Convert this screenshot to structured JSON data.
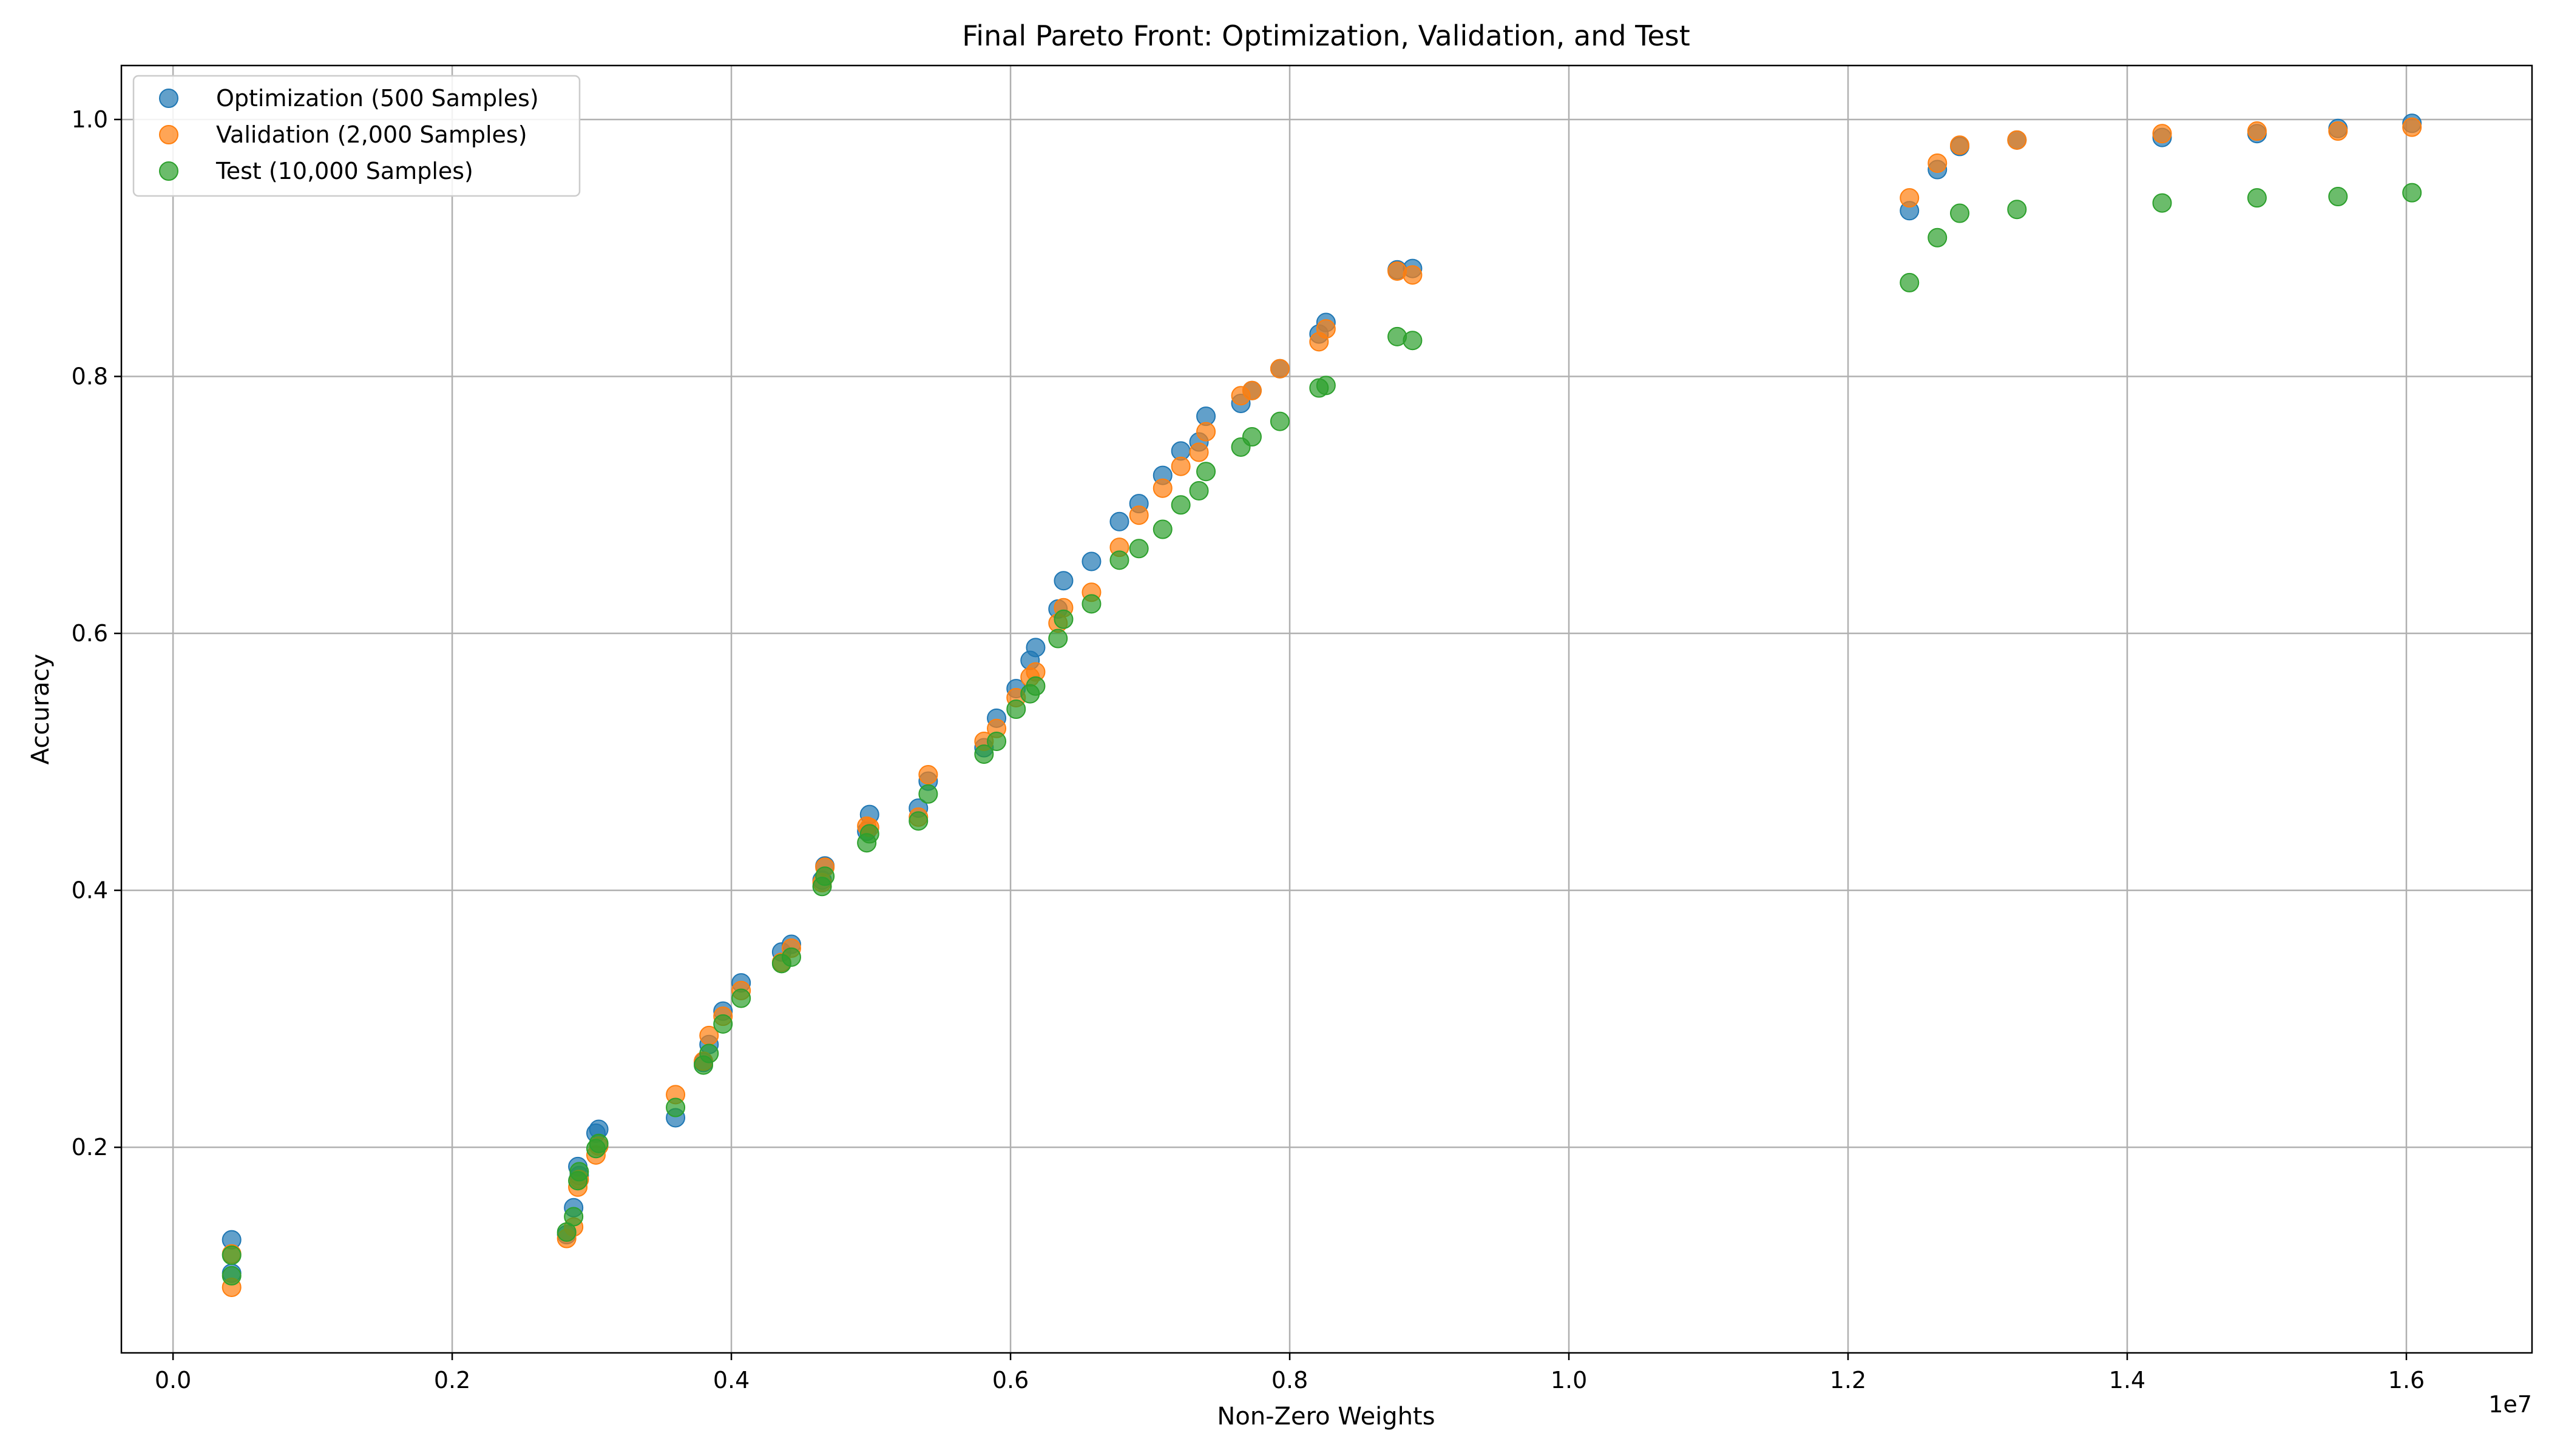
{
  "chart_data": {
    "type": "scatter",
    "title": "Final Pareto Front: Optimization, Validation, and Test",
    "xlabel": "Non-Zero Weights",
    "ylabel": "Accuracy",
    "x_offset_label": "1e7",
    "xlim": [
      -370000,
      16900000
    ],
    "ylim": [
      0.04,
      1.042
    ],
    "xticks": [
      0,
      2000000,
      4000000,
      6000000,
      8000000,
      10000000,
      12000000,
      14000000,
      16000000
    ],
    "xtick_labels": [
      "0.0",
      "0.2",
      "0.4",
      "0.6",
      "0.8",
      "1.0",
      "1.2",
      "1.4",
      "1.6"
    ],
    "yticks": [
      0.2,
      0.4,
      0.6,
      0.8,
      1.0
    ],
    "ytick_labels": [
      "0.2",
      "0.4",
      "0.6",
      "0.8",
      "1.0"
    ],
    "grid": true,
    "legend_position": "top-left",
    "x": [
      420000,
      420000,
      2820000,
      2870000,
      2900000,
      2910000,
      3030000,
      3050000,
      3600000,
      3800000,
      3840000,
      3940000,
      4070000,
      4360000,
      4430000,
      4650000,
      4670000,
      4970000,
      4990000,
      5340000,
      5410000,
      5810000,
      5900000,
      6040000,
      6140000,
      6180000,
      6340000,
      6380000,
      6580000,
      6780000,
      6920000,
      7090000,
      7220000,
      7350000,
      7400000,
      7650000,
      7730000,
      7930000,
      8210000,
      8260000,
      8770000,
      8880000,
      12440000,
      12640000,
      12800000,
      13210000,
      14250000,
      14930000,
      15510000,
      16040000
    ],
    "series": [
      {
        "name": "Optimization (500 Samples)",
        "color": "#1f77b4",
        "y": [
          0.102,
          0.128,
          0.132,
          0.153,
          0.185,
          0.178,
          0.211,
          0.214,
          0.223,
          0.266,
          0.28,
          0.306,
          0.328,
          0.352,
          0.358,
          0.408,
          0.419,
          0.446,
          0.459,
          0.464,
          0.485,
          0.511,
          0.534,
          0.557,
          0.579,
          0.589,
          0.619,
          0.641,
          0.656,
          0.687,
          0.701,
          0.723,
          0.742,
          0.749,
          0.769,
          0.779,
          0.789,
          0.806,
          0.833,
          0.842,
          0.883,
          0.884,
          0.929,
          0.961,
          0.979,
          0.984,
          0.986,
          0.989,
          0.993,
          0.997
        ]
      },
      {
        "name": "Validation (2,000 Samples)",
        "color": "#ff7f0e",
        "y": [
          0.091,
          0.117,
          0.129,
          0.138,
          0.169,
          0.175,
          0.194,
          0.201,
          0.241,
          0.267,
          0.287,
          0.302,
          0.322,
          0.344,
          0.355,
          0.406,
          0.418,
          0.45,
          0.449,
          0.457,
          0.49,
          0.516,
          0.526,
          0.55,
          0.566,
          0.57,
          0.608,
          0.62,
          0.632,
          0.667,
          0.692,
          0.713,
          0.73,
          0.741,
          0.757,
          0.785,
          0.789,
          0.806,
          0.827,
          0.837,
          0.882,
          0.879,
          0.939,
          0.966,
          0.98,
          0.984,
          0.989,
          0.991,
          0.991,
          0.994
        ]
      },
      {
        "name": "Test (10,000 Samples)",
        "color": "#2ca02c",
        "y": [
          0.1,
          0.116,
          0.134,
          0.146,
          0.174,
          0.181,
          0.199,
          0.203,
          0.231,
          0.264,
          0.273,
          0.296,
          0.316,
          0.343,
          0.348,
          0.403,
          0.411,
          0.437,
          0.444,
          0.454,
          0.475,
          0.506,
          0.516,
          0.541,
          0.553,
          0.559,
          0.596,
          0.611,
          0.623,
          0.657,
          0.666,
          0.681,
          0.7,
          0.711,
          0.726,
          0.745,
          0.753,
          0.765,
          0.791,
          0.793,
          0.831,
          0.828,
          0.873,
          0.908,
          0.927,
          0.93,
          0.935,
          0.939,
          0.94,
          0.943
        ]
      }
    ]
  }
}
